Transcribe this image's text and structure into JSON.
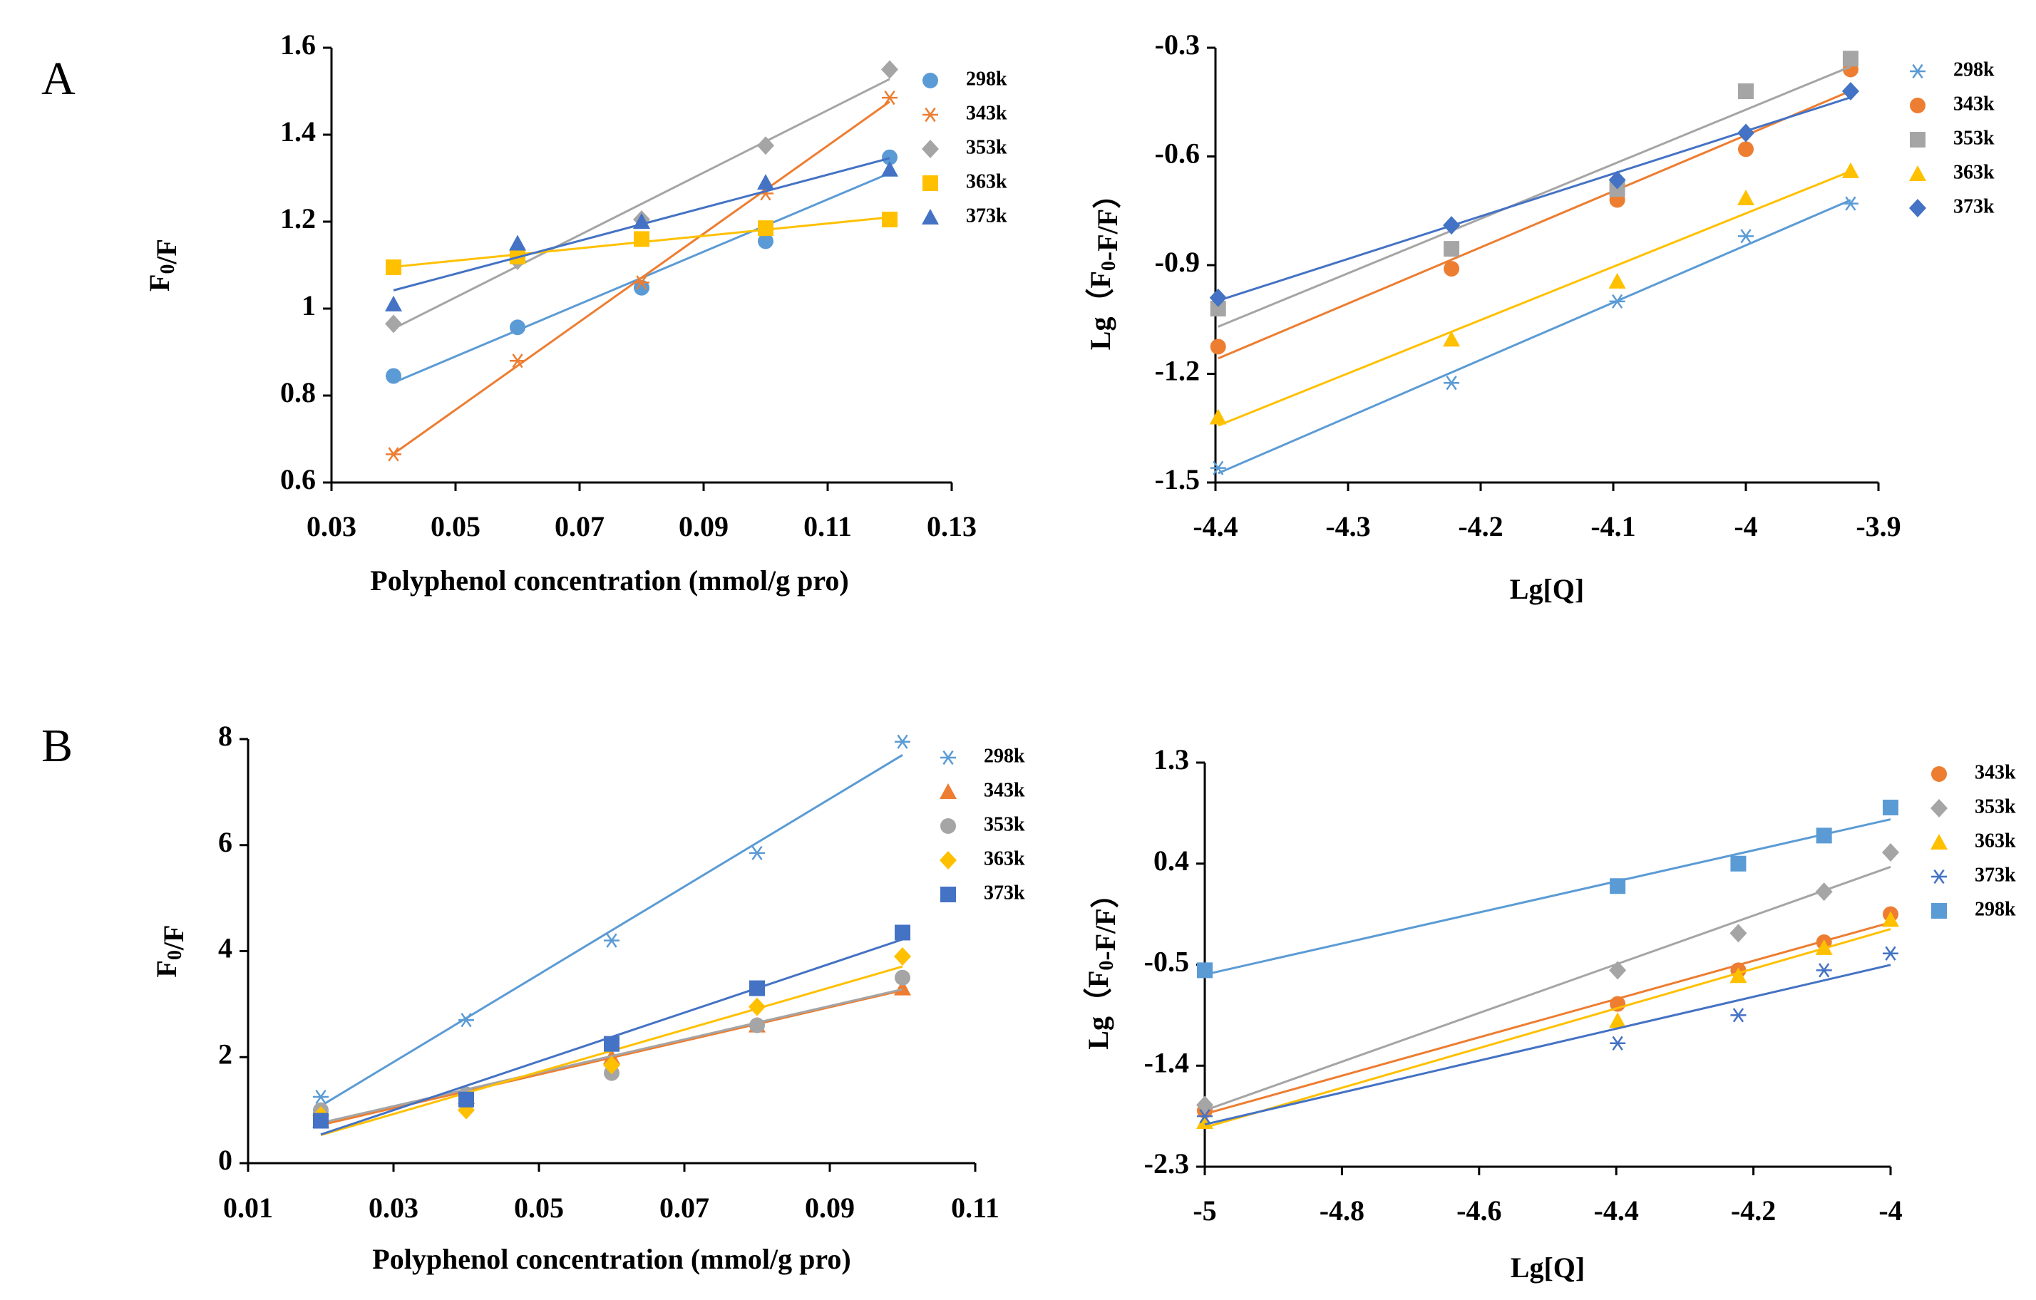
{
  "panels": [
    {
      "letter": "A"
    },
    {
      "letter": "B"
    }
  ],
  "colors": {
    "blue": "#5B9BD5",
    "orange": "#ED7D31",
    "gray": "#A5A5A5",
    "yellow": "#FFC000",
    "darkblue": "#4472C4"
  },
  "chart_data": [
    {
      "type": "scatter",
      "panel": "A",
      "xlabel": "Polyphenol concentration (mmol/g pro)",
      "ylabel": "F0/F",
      "xlim": [
        0.03,
        0.13
      ],
      "ylim": [
        0.6,
        1.6
      ],
      "xticks": [
        0.03,
        0.05,
        0.07,
        0.09,
        0.11,
        0.13
      ],
      "yticks": [
        0.6,
        0.8,
        1,
        1.2,
        1.4,
        1.6
      ],
      "xtick_labels": [
        "0.03",
        "0.05",
        "0.07",
        "0.09",
        "0.11",
        "0.13"
      ],
      "ytick_labels": [
        "0.6",
        "0.8",
        "1",
        "1.2",
        "1.4",
        "1.6"
      ],
      "legend_position": "right",
      "trendlines": true,
      "series": [
        {
          "name": "298k",
          "marker": "circle",
          "color": "#5B9BD5",
          "x": [
            0.04,
            0.06,
            0.08,
            0.1,
            0.12
          ],
          "y": [
            0.845,
            0.957,
            1.048,
            1.155,
            1.348
          ]
        },
        {
          "name": "343k",
          "marker": "asterisk",
          "color": "#ED7D31",
          "x": [
            0.04,
            0.06,
            0.08,
            0.1,
            0.12
          ],
          "y": [
            0.665,
            0.88,
            1.06,
            1.265,
            1.485
          ]
        },
        {
          "name": "353k",
          "marker": "diamond",
          "color": "#A5A5A5",
          "x": [
            0.04,
            0.06,
            0.08,
            0.1,
            0.12
          ],
          "y": [
            0.965,
            1.11,
            1.205,
            1.375,
            1.55
          ]
        },
        {
          "name": "363k",
          "marker": "square",
          "color": "#FFC000",
          "x": [
            0.04,
            0.06,
            0.08,
            0.1,
            0.12
          ],
          "y": [
            1.095,
            1.12,
            1.16,
            1.185,
            1.205
          ]
        },
        {
          "name": "373k",
          "marker": "triangle",
          "color": "#4472C4",
          "x": [
            0.04,
            0.06,
            0.08,
            0.1,
            0.12
          ],
          "y": [
            1.01,
            1.15,
            1.2,
            1.29,
            1.32
          ]
        }
      ]
    },
    {
      "type": "scatter",
      "panel": "A",
      "xlabel": "Lg[Q]",
      "ylabel": "Lg（F0-F/F）",
      "xlim": [
        -4.4,
        -3.9
      ],
      "ylim": [
        -1.5,
        -0.3
      ],
      "xticks": [
        -4.4,
        -4.3,
        -4.2,
        -4.1,
        -4.0,
        -3.9
      ],
      "yticks": [
        -1.5,
        -1.2,
        -0.9,
        -0.6,
        -0.3
      ],
      "xtick_labels": [
        "-4.4",
        "-4.3",
        "-4.2",
        "-4.1",
        "-4",
        "-3.9"
      ],
      "ytick_labels": [
        "-1.5",
        "-1.2",
        "-0.9",
        "-0.6",
        "-0.3"
      ],
      "legend_position": "right",
      "trendlines": true,
      "series": [
        {
          "name": "298k",
          "marker": "asterisk",
          "color": "#5B9BD5",
          "x": [
            -4.398,
            -4.222,
            -4.097,
            -4.0,
            -3.921
          ],
          "y": [
            -1.46,
            -1.225,
            -1.0,
            -0.82,
            -0.73
          ]
        },
        {
          "name": "343k",
          "marker": "circle",
          "color": "#ED7D31",
          "x": [
            -4.398,
            -4.222,
            -4.097,
            -4.0,
            -3.921
          ],
          "y": [
            -1.125,
            -0.91,
            -0.72,
            -0.58,
            -0.36
          ]
        },
        {
          "name": "353k",
          "marker": "square",
          "color": "#A5A5A5",
          "x": [
            -4.398,
            -4.222,
            -4.097,
            -4.0,
            -3.921
          ],
          "y": [
            -1.02,
            -0.855,
            -0.69,
            -0.42,
            -0.33
          ]
        },
        {
          "name": "363k",
          "marker": "triangle",
          "color": "#FFC000",
          "x": [
            -4.398,
            -4.222,
            -4.097,
            -4.0,
            -3.921
          ],
          "y": [
            -1.32,
            -1.105,
            -0.945,
            -0.715,
            -0.64
          ]
        },
        {
          "name": "373k",
          "marker": "diamond",
          "color": "#4472C4",
          "x": [
            -4.398,
            -4.222,
            -4.097,
            -4.0,
            -3.921
          ],
          "y": [
            -0.99,
            -0.79,
            -0.665,
            -0.535,
            -0.42
          ]
        }
      ]
    },
    {
      "type": "scatter",
      "panel": "B",
      "xlabel": "Polyphenol concentration (mmol/g pro)",
      "ylabel": "F0/F",
      "xlim": [
        0.01,
        0.11
      ],
      "ylim": [
        0,
        8
      ],
      "xticks": [
        0.01,
        0.03,
        0.05,
        0.07,
        0.09,
        0.11
      ],
      "yticks": [
        0,
        2,
        4,
        6,
        8
      ],
      "xtick_labels": [
        "0.01",
        "0.03",
        "0.05",
        "0.07",
        "0.09",
        "0.11"
      ],
      "ytick_labels": [
        "0",
        "2",
        "4",
        "6",
        "8"
      ],
      "legend_position": "right",
      "trendlines": true,
      "series": [
        {
          "name": "298k",
          "marker": "asterisk",
          "color": "#5B9BD5",
          "x": [
            0.02,
            0.04,
            0.06,
            0.08,
            0.1
          ],
          "y": [
            1.25,
            2.7,
            4.2,
            5.85,
            7.95
          ]
        },
        {
          "name": "343k",
          "marker": "triangle",
          "color": "#ED7D31",
          "x": [
            0.02,
            0.04,
            0.06,
            0.08,
            0.1
          ],
          "y": [
            0.8,
            1.25,
            2.0,
            2.6,
            3.3
          ]
        },
        {
          "name": "353k",
          "marker": "circle",
          "color": "#A5A5A5",
          "x": [
            0.02,
            0.04,
            0.06,
            0.08,
            0.1
          ],
          "y": [
            1.0,
            1.3,
            1.7,
            2.6,
            3.5
          ]
        },
        {
          "name": "363k",
          "marker": "diamond",
          "color": "#FFC000",
          "x": [
            0.02,
            0.04,
            0.06,
            0.08,
            0.1
          ],
          "y": [
            0.9,
            1.0,
            1.85,
            2.95,
            3.9
          ]
        },
        {
          "name": "373k",
          "marker": "square",
          "color": "#4472C4",
          "x": [
            0.02,
            0.04,
            0.06,
            0.08,
            0.1
          ],
          "y": [
            0.8,
            1.2,
            2.25,
            3.3,
            4.35
          ]
        }
      ]
    },
    {
      "type": "scatter",
      "panel": "B",
      "xlabel": "Lg[Q]",
      "ylabel": "Lg（F0-F/F）",
      "xlim": [
        -5,
        -4
      ],
      "ylim": [
        -2.3,
        1.3
      ],
      "xticks": [
        -5,
        -4.8,
        -4.6,
        -4.4,
        -4.2,
        -4.0
      ],
      "yticks": [
        -2.3,
        -1.4,
        -0.5,
        0.4,
        1.3
      ],
      "xtick_labels": [
        "-5",
        "-4.8",
        "-4.6",
        "-4.4",
        "-4.2",
        "-4"
      ],
      "ytick_labels": [
        "-2.3",
        "-1.4",
        "-0.5",
        "0.4",
        "1.3"
      ],
      "legend_position": "right",
      "trendlines": true,
      "series": [
        {
          "name": "343k",
          "marker": "circle",
          "color": "#ED7D31",
          "x": [
            -5.0,
            -4.398,
            -4.222,
            -4.097,
            -4.0
          ],
          "y": [
            -1.8,
            -0.85,
            -0.55,
            -0.3,
            -0.05
          ]
        },
        {
          "name": "353k",
          "marker": "diamond",
          "color": "#A5A5A5",
          "x": [
            -5.0,
            -4.398,
            -4.222,
            -4.097,
            -4.0
          ],
          "y": [
            -1.75,
            -0.55,
            -0.22,
            0.15,
            0.5
          ]
        },
        {
          "name": "363k",
          "marker": "triangle",
          "color": "#FFC000",
          "x": [
            -5.0,
            -4.398,
            -4.222,
            -4.097,
            -4.0
          ],
          "y": [
            -1.9,
            -1.0,
            -0.6,
            -0.35,
            -0.1
          ]
        },
        {
          "name": "373k",
          "marker": "asterisk",
          "color": "#4472C4",
          "x": [
            -5.0,
            -4.398,
            -4.222,
            -4.097,
            -4.0
          ],
          "y": [
            -1.85,
            -1.2,
            -0.95,
            -0.55,
            -0.4
          ]
        },
        {
          "name": "298k",
          "marker": "square",
          "color": "#5B9BD5",
          "x": [
            -5.0,
            -4.398,
            -4.222,
            -4.097,
            -4.0
          ],
          "y": [
            -0.55,
            0.2,
            0.4,
            0.65,
            0.9
          ]
        }
      ]
    }
  ]
}
